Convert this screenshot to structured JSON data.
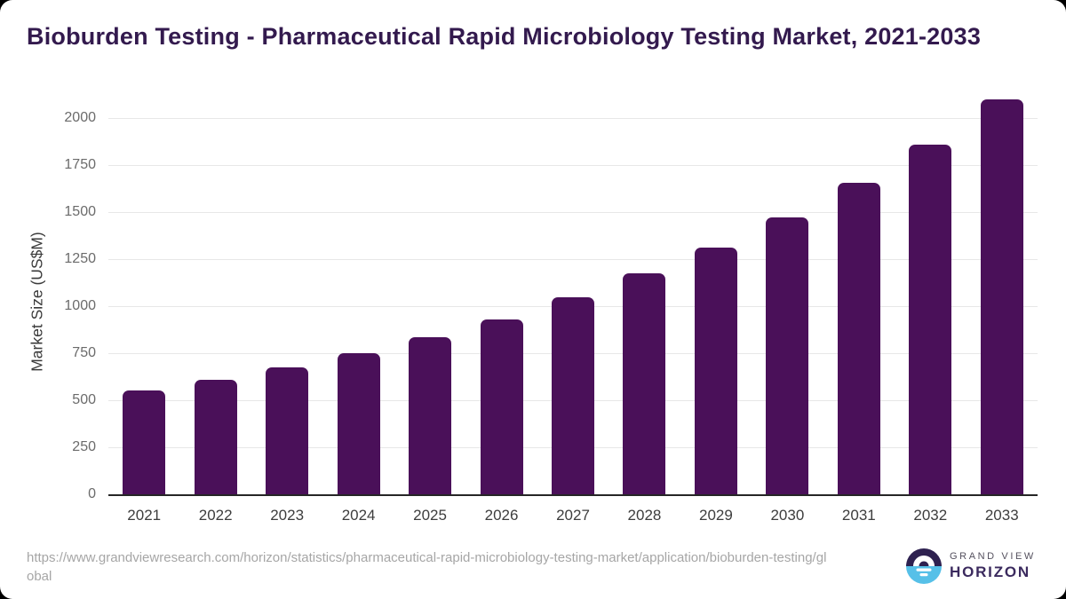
{
  "title": "Bioburden Testing - Pharmaceutical Rapid Microbiology Testing Market, 2021-2033",
  "chart_data": {
    "type": "bar",
    "title": "Bioburden Testing - Pharmaceutical Rapid Microbiology Testing Market, 2021-2033",
    "categories": [
      "2021",
      "2022",
      "2023",
      "2024",
      "2025",
      "2026",
      "2027",
      "2028",
      "2029",
      "2030",
      "2031",
      "2032",
      "2033"
    ],
    "values": [
      550,
      610,
      675,
      750,
      835,
      930,
      1045,
      1175,
      1310,
      1470,
      1655,
      1855,
      2095
    ],
    "xlabel": "",
    "ylabel": "Market Size (US$M)",
    "ylim": [
      0,
      2130
    ],
    "yticks": [
      0,
      250,
      500,
      750,
      1000,
      1250,
      1500,
      1750,
      2000
    ],
    "grid": "horizontal",
    "legend": "none",
    "bar_color": "#4a1059"
  },
  "footer": {
    "source_url": "https://www.grandviewresearch.com/horizon/statistics/pharmaceutical-rapid-microbiology-testing-market/application/bioburden-testing/global",
    "logo": {
      "line1": "GRAND VIEW",
      "line2": "HORIZON"
    }
  },
  "colors": {
    "background": "#ffffff",
    "page_frame": "#000000",
    "bar": "#4a1059",
    "title_text": "#331a4e",
    "gridline": "#e7e7e7",
    "axis_line": "#262626",
    "logo_dark": "#2e2150",
    "logo_blue": "#56c0e8"
  }
}
